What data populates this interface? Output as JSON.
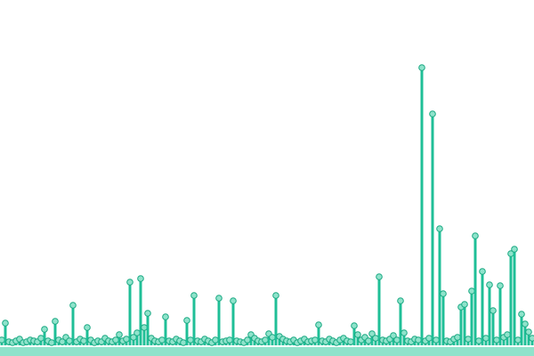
{
  "chart_data": {
    "type": "lollipop",
    "values": [
      6,
      25,
      4,
      3,
      5,
      7,
      3,
      4,
      6,
      5,
      4,
      8,
      18,
      5,
      3,
      27,
      6,
      4,
      9,
      5,
      45,
      4,
      7,
      5,
      20,
      6,
      3,
      5,
      4,
      8,
      5,
      4,
      6,
      12,
      5,
      7,
      71,
      9,
      14,
      75,
      20,
      36,
      8,
      5,
      4,
      6,
      32,
      5,
      4,
      7,
      5,
      3,
      28,
      6,
      56,
      5,
      4,
      7,
      5,
      3,
      6,
      53,
      4,
      5,
      6,
      50,
      5,
      4,
      3,
      6,
      12,
      8,
      5,
      4,
      6,
      13,
      9,
      56,
      10,
      7,
      5,
      4,
      6,
      3,
      5,
      7,
      4,
      5,
      6,
      23,
      5,
      4,
      7,
      5,
      3,
      6,
      8,
      5,
      4,
      22,
      12,
      6,
      9,
      5,
      13,
      8,
      77,
      6,
      5,
      7,
      11,
      6,
      50,
      14,
      5,
      4,
      7,
      6,
      312,
      5,
      8,
      260,
      6,
      131,
      58,
      5,
      4,
      7,
      9,
      43,
      46,
      7,
      61,
      123,
      5,
      83,
      8,
      68,
      39,
      6,
      67,
      9,
      12,
      103,
      108,
      6,
      35,
      24,
      15,
      8
    ],
    "color": "#1fbf97",
    "marker_fill": "#8fe3cb",
    "marker_stroke": "#19a882",
    "ylim": [
      0,
      388
    ]
  }
}
